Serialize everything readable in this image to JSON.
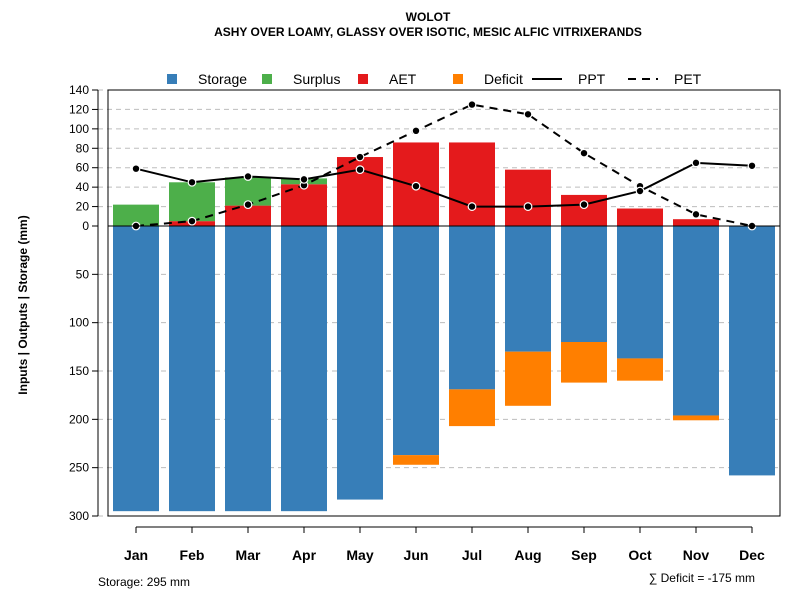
{
  "chart_data": {
    "type": "bar",
    "title": "WOLOT",
    "subtitle": "ASHY OVER LOAMY, GLASSY OVER ISOTIC, MESIC ALFIC VITRIXERANDS",
    "ylabel": "Inputs | Outputs | Storage    (mm)",
    "categories": [
      "Jan",
      "Feb",
      "Mar",
      "Apr",
      "May",
      "Jun",
      "Jul",
      "Aug",
      "Sep",
      "Oct",
      "Nov",
      "Dec"
    ],
    "y_ticks_above": [
      0,
      20,
      40,
      60,
      80,
      100,
      120,
      140
    ],
    "y_ticks_below": [
      0,
      50,
      100,
      150,
      200,
      250,
      300
    ],
    "ylim_above": [
      0,
      140
    ],
    "ylim_below": [
      0,
      300
    ],
    "series": [
      {
        "name": "Storage",
        "color": "#377EB8",
        "values": [
          295,
          295,
          295,
          295,
          283,
          237,
          169,
          130,
          120,
          137,
          196,
          258
        ]
      },
      {
        "name": "Surplus",
        "color": "#4DAF4A",
        "values": [
          22,
          40,
          29,
          6,
          0,
          0,
          0,
          0,
          0,
          0,
          0,
          0
        ]
      },
      {
        "name": "AET",
        "color": "#E41A1C",
        "values": [
          0,
          5,
          21,
          43,
          71,
          86,
          86,
          58,
          32,
          18,
          7,
          0
        ]
      },
      {
        "name": "Deficit",
        "color": "#FF7F00",
        "values": [
          0,
          0,
          0,
          0,
          0,
          10,
          38,
          56,
          42,
          23,
          5,
          0
        ]
      },
      {
        "name": "PPT",
        "color": "#000000",
        "line": "solid",
        "values": [
          59,
          45,
          51,
          48,
          58,
          41,
          20,
          20,
          22,
          36,
          65,
          62
        ]
      },
      {
        "name": "PET",
        "color": "#000000",
        "line": "dashed",
        "values": [
          0,
          5,
          22,
          42,
          71,
          98,
          125,
          115,
          75,
          41,
          12,
          0
        ]
      }
    ],
    "legend": [
      "Storage",
      "Surplus",
      "AET",
      "Deficit",
      "PPT",
      "PET"
    ],
    "legend_position": "top",
    "grid": true,
    "footnote_left": "Storage: 295 mm",
    "footnote_right": "∑ Deficit = -175 mm"
  }
}
